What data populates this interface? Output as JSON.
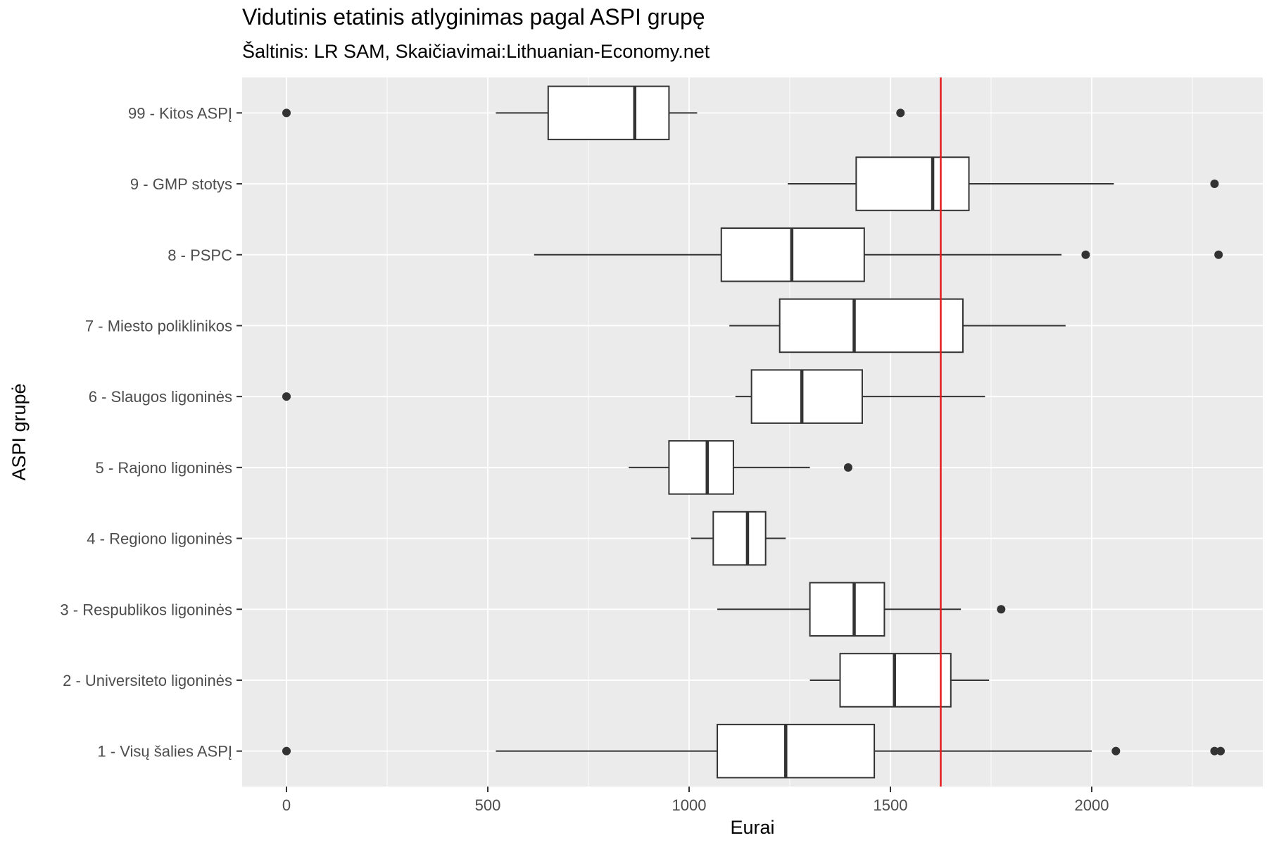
{
  "chart_data": {
    "type": "boxplot",
    "orientation": "horizontal",
    "title": "Vidutinis etatinis atlyginimas pagal ASPI grupę",
    "subtitle": "Šaltinis: LR SAM, Skaičiavimai:Lithuanian-Economy.net",
    "xlabel": "Eurai",
    "ylabel": "ASPI grupė",
    "xlim": [
      -115,
      2430
    ],
    "xticks": [
      0,
      500,
      1000,
      1500,
      2000
    ],
    "reference_line": {
      "x": 1625,
      "color": "#e41a1c"
    },
    "grid": true,
    "background": "#ebebeb",
    "categories": [
      {
        "label": "1 - Visų šalies ASPĮ",
        "whisker_low": 520,
        "q1": 1070,
        "median": 1240,
        "q3": 1460,
        "whisker_high": 2000,
        "outliers": [
          0,
          2060,
          2305,
          2320
        ]
      },
      {
        "label": "2 - Universiteto ligoninės",
        "whisker_low": 1300,
        "q1": 1375,
        "median": 1510,
        "q3": 1650,
        "whisker_high": 1745,
        "outliers": []
      },
      {
        "label": "3 - Respublikos ligoninės",
        "whisker_low": 1070,
        "q1": 1300,
        "median": 1410,
        "q3": 1485,
        "whisker_high": 1675,
        "outliers": [
          1775
        ]
      },
      {
        "label": "4 - Regiono ligoninės",
        "whisker_low": 1005,
        "q1": 1060,
        "median": 1145,
        "q3": 1190,
        "whisker_high": 1240,
        "outliers": []
      },
      {
        "label": "5 - Rajono ligoninės",
        "whisker_low": 850,
        "q1": 950,
        "median": 1045,
        "q3": 1110,
        "whisker_high": 1300,
        "outliers": [
          1395
        ]
      },
      {
        "label": "6 - Slaugos ligoninės",
        "whisker_low": 1115,
        "q1": 1155,
        "median": 1280,
        "q3": 1430,
        "whisker_high": 1735,
        "outliers": [
          0
        ]
      },
      {
        "label": "7 - Miesto poliklinikos",
        "whisker_low": 1100,
        "q1": 1225,
        "median": 1410,
        "q3": 1680,
        "whisker_high": 1935,
        "outliers": []
      },
      {
        "label": "8 - PSPC",
        "whisker_low": 615,
        "q1": 1080,
        "median": 1255,
        "q3": 1435,
        "whisker_high": 1925,
        "outliers": [
          1985,
          2315
        ]
      },
      {
        "label": "9 - GMP stotys",
        "whisker_low": 1245,
        "q1": 1415,
        "median": 1605,
        "q3": 1695,
        "whisker_high": 2055,
        "outliers": [
          2305
        ]
      },
      {
        "label": "99 - Kitos ASPĮ",
        "whisker_low": 520,
        "q1": 650,
        "median": 865,
        "q3": 950,
        "whisker_high": 1020,
        "outliers": [
          0,
          1525
        ]
      }
    ]
  }
}
